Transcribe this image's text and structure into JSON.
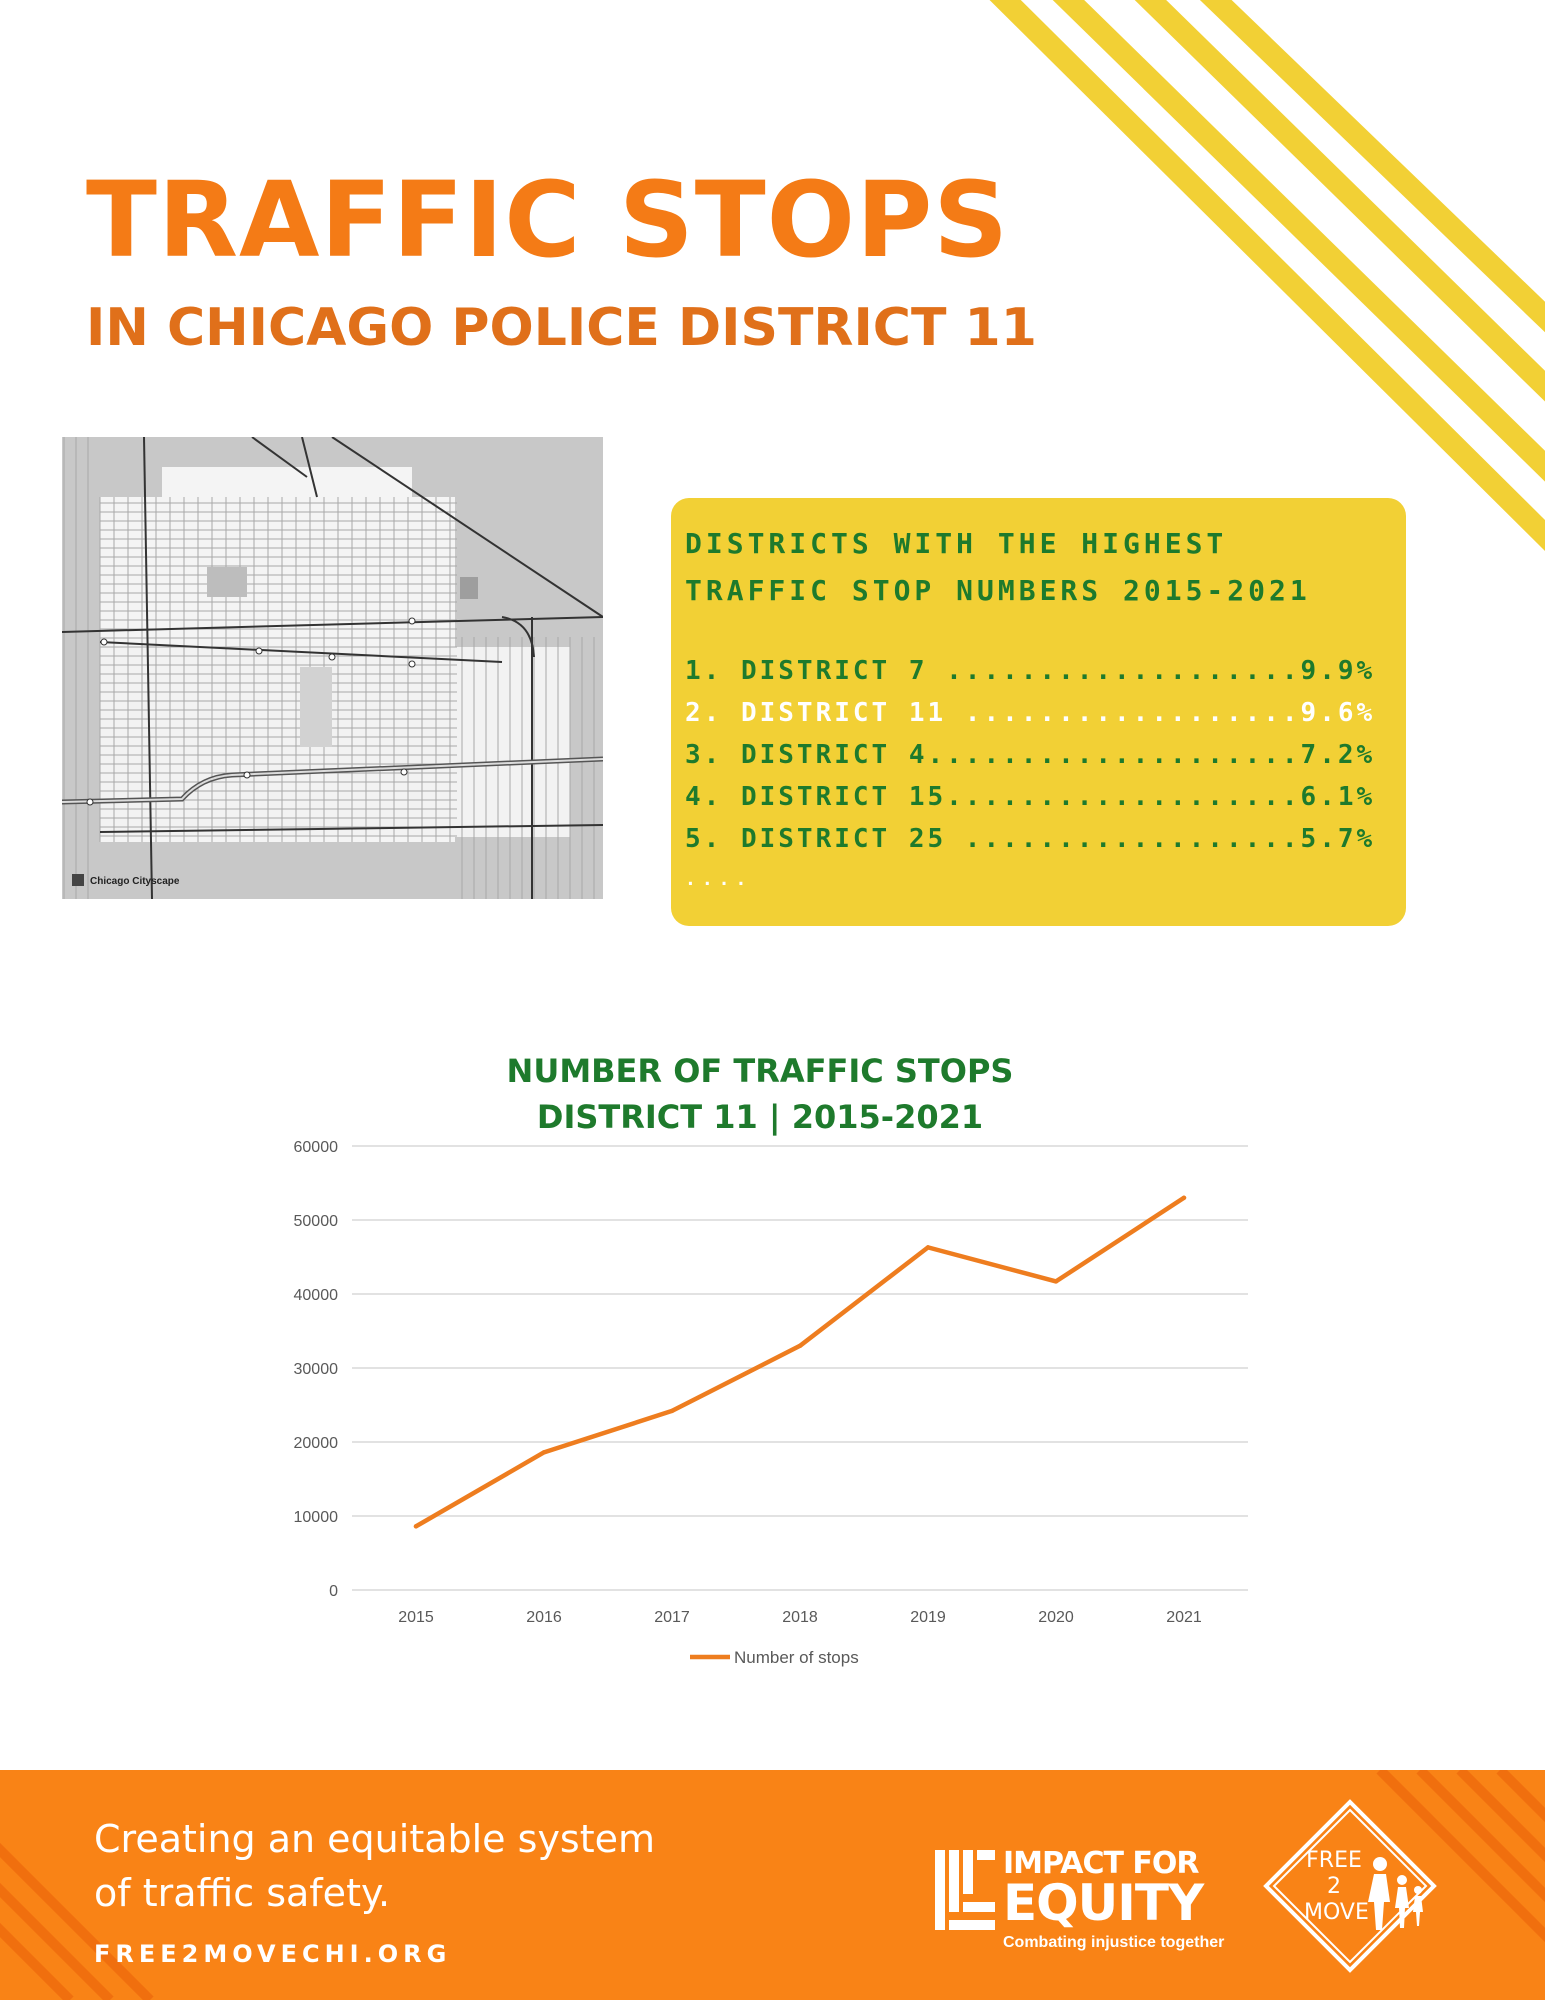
{
  "header": {
    "title": "TRAFFIC STOPS",
    "subtitle": "IN CHICAGO POLICE DISTRICT 11"
  },
  "map": {
    "credit": "Chicago Cityscape"
  },
  "ranking": {
    "heading_line1": "DISTRICTS WITH THE HIGHEST",
    "heading_line2": "TRAFFIC STOP NUMBERS 2015-2021",
    "items": [
      {
        "text": "1. DISTRICT 7 ...................9.9%",
        "highlight": false
      },
      {
        "text": "2. DISTRICT 11 ..................9.6%",
        "highlight": true
      },
      {
        "text": "3. DISTRICT 4....................7.2%",
        "highlight": false
      },
      {
        "text": "4. DISTRICT 15...................6.1%",
        "highlight": false
      },
      {
        "text": "5. DISTRICT 25 ..................5.7%",
        "highlight": false
      }
    ],
    "more": "...."
  },
  "chart_data": {
    "type": "line",
    "title_line1": "NUMBER OF TRAFFIC STOPS",
    "title_line2": "DISTRICT 11 | 2015-2021",
    "categories": [
      "2015",
      "2016",
      "2017",
      "2018",
      "2019",
      "2020",
      "2021"
    ],
    "series": [
      {
        "name": "Number of stops",
        "values": [
          8600,
          18600,
          24200,
          33000,
          46300,
          41700,
          53000
        ],
        "color": "#EE7D1F"
      }
    ],
    "ylim": [
      0,
      60000
    ],
    "yticks": [
      0,
      10000,
      20000,
      30000,
      40000,
      50000,
      60000
    ],
    "grid": true,
    "legend": "bottom"
  },
  "footer": {
    "tagline_line1": "Creating an equitable system",
    "tagline_line2": "of traffic safety.",
    "url": "FREE2MOVECHI.ORG",
    "impact_logo": {
      "line1": "IMPACT FOR",
      "line2": "EQUITY",
      "tagline": "Combating injustice together"
    },
    "free2move_logo": {
      "line1": "FREE",
      "line2": "2",
      "line3": "MOVE"
    }
  },
  "colors": {
    "orange": "#F47B16",
    "yellow": "#F2D035",
    "green": "#1E7A2C",
    "footer_orange": "#F98316"
  }
}
